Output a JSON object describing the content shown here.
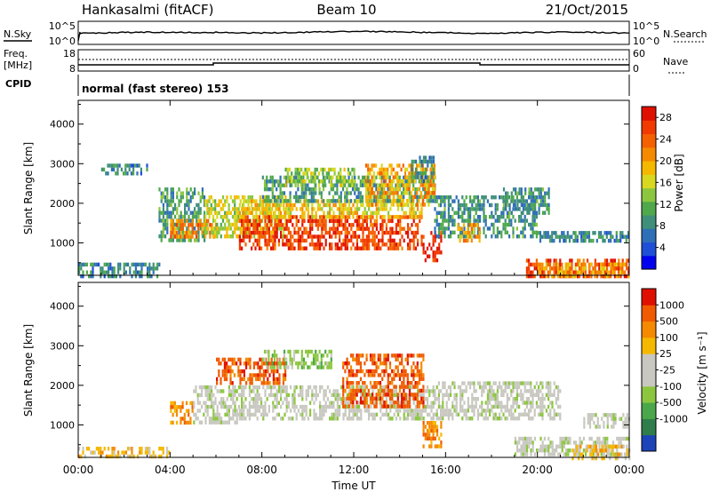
{
  "header": {
    "station": "Hankasalmi (fitACF)",
    "beam": "Beam 10",
    "date": "21/Oct/2015"
  },
  "top_panels": {
    "nsky_label": "N.Sky",
    "nsky_ticks": [
      "10^5",
      "10^0"
    ],
    "nsearch_label": "N.Search",
    "nsearch_ticks": [
      "10^5",
      "10^0"
    ],
    "freq_label": "Freq.",
    "freq_unit": "[MHz]",
    "freq_ticks": [
      "18",
      "8"
    ],
    "nave_label": "Nave",
    "nave_ticks": [
      "60",
      "0"
    ],
    "cpid_label": "CPID",
    "cpid_text": "normal (fast stereo) 153"
  },
  "chart_data": [
    {
      "type": "heatmap",
      "panel": "power",
      "ylabel": "Slant Range [km]",
      "xlabel": "",
      "x_ticks": [
        "00:00",
        "04:00",
        "08:00",
        "12:00",
        "16:00",
        "20:00",
        "00:00"
      ],
      "x_range_hours": [
        0,
        24
      ],
      "y_ticks": [
        1000,
        2000,
        3000,
        4000
      ],
      "ylim": [
        180,
        4600
      ],
      "colorbar": {
        "label": "Power [dB]",
        "tick_labels": [
          "4",
          "8",
          "12",
          "16",
          "20",
          "24",
          "28"
        ],
        "range": [
          0,
          30
        ],
        "colors": [
          "#0000ee",
          "#1e4fd6",
          "#2f6fb7",
          "#3f8f7a",
          "#4fa84a",
          "#8cc63f",
          "#d8d820",
          "#f5b800",
          "#f58a00",
          "#f56000",
          "#f03a00",
          "#e01000"
        ]
      },
      "regions": [
        {
          "t": [
            0.0,
            3.5
          ],
          "r": [
            200,
            500
          ],
          "value": 8
        },
        {
          "t": [
            1.0,
            3.0
          ],
          "r": [
            2800,
            3000
          ],
          "value": 8
        },
        {
          "t": [
            3.5,
            5.5
          ],
          "r": [
            1100,
            2400
          ],
          "value": 10
        },
        {
          "t": [
            4.0,
            6.0
          ],
          "r": [
            1200,
            1600
          ],
          "value": 22
        },
        {
          "t": [
            5.5,
            9.0
          ],
          "r": [
            1200,
            2200
          ],
          "value": 16
        },
        {
          "t": [
            7.0,
            15.0
          ],
          "r": [
            900,
            1700
          ],
          "value": 26
        },
        {
          "t": [
            7.0,
            15.0
          ],
          "r": [
            1700,
            2100
          ],
          "value": 18
        },
        {
          "t": [
            8.0,
            15.5
          ],
          "r": [
            2100,
            2700
          ],
          "value": 10
        },
        {
          "t": [
            9.0,
            12.0
          ],
          "r": [
            2500,
            2900
          ],
          "value": 14
        },
        {
          "t": [
            12.5,
            15.5
          ],
          "r": [
            2000,
            3000
          ],
          "value": 20
        },
        {
          "t": [
            14.5,
            15.5
          ],
          "r": [
            2600,
            3200
          ],
          "value": 8
        },
        {
          "t": [
            15.0,
            15.8
          ],
          "r": [
            600,
            1300
          ],
          "value": 28
        },
        {
          "t": [
            15.5,
            20.0
          ],
          "r": [
            1200,
            2200
          ],
          "value": 9
        },
        {
          "t": [
            16.5,
            17.5
          ],
          "r": [
            1100,
            1500
          ],
          "value": 20
        },
        {
          "t": [
            18.5,
            20.5
          ],
          "r": [
            1800,
            2400
          ],
          "value": 9
        },
        {
          "t": [
            20.0,
            24.0
          ],
          "r": [
            1100,
            1300
          ],
          "value": 8
        },
        {
          "t": [
            19.5,
            24.0
          ],
          "r": [
            200,
            600
          ],
          "value": 26
        },
        {
          "t": [
            20.0,
            24.0
          ],
          "r": [
            200,
            500
          ],
          "value": 20
        }
      ]
    },
    {
      "type": "heatmap",
      "panel": "velocity",
      "ylabel": "Slant Range [km]",
      "xlabel": "Time UT",
      "x_ticks": [
        "00:00",
        "04:00",
        "08:00",
        "12:00",
        "16:00",
        "20:00",
        "00:00"
      ],
      "x_range_hours": [
        0,
        24
      ],
      "y_ticks": [
        1000,
        2000,
        3000,
        4000
      ],
      "ylim": [
        180,
        4600
      ],
      "colorbar": {
        "label": "Velocity [m s⁻¹]",
        "tick_labels": [
          "1000",
          "500",
          "100",
          "25",
          "-25",
          "-100",
          "-500",
          "-1000"
        ],
        "bins": [
          {
            "color": "#1c44b8"
          },
          {
            "color": "#2f7d4a"
          },
          {
            "color": "#4aa84a"
          },
          {
            "color": "#8cc63f"
          },
          {
            "color": "#c8c8c0"
          },
          {
            "color": "#c8c8c0"
          },
          {
            "color": "#f5b800"
          },
          {
            "color": "#f58a00"
          },
          {
            "color": "#f05a00"
          },
          {
            "color": "#e01000"
          }
        ]
      },
      "regions": [
        {
          "t": [
            0.0,
            4.0
          ],
          "r": [
            200,
            450
          ],
          "bin": 6
        },
        {
          "t": [
            4.0,
            5.0
          ],
          "r": [
            1100,
            1600
          ],
          "bin": 7
        },
        {
          "t": [
            5.0,
            7.0
          ],
          "r": [
            1100,
            2000
          ],
          "bin": 4
        },
        {
          "t": [
            6.0,
            9.0
          ],
          "r": [
            2100,
            2700
          ],
          "bin": 8
        },
        {
          "t": [
            8.0,
            11.0
          ],
          "r": [
            2500,
            2900
          ],
          "bin": 3
        },
        {
          "t": [
            7.0,
            15.5
          ],
          "r": [
            1200,
            2000
          ],
          "bin": 4
        },
        {
          "t": [
            11.5,
            15.0
          ],
          "r": [
            1500,
            2800
          ],
          "bin": 8
        },
        {
          "t": [
            15.0,
            15.8
          ],
          "r": [
            500,
            1100
          ],
          "bin": 7
        },
        {
          "t": [
            15.5,
            21.0
          ],
          "r": [
            1200,
            2100
          ],
          "bin": 4
        },
        {
          "t": [
            19.0,
            24.0
          ],
          "r": [
            300,
            700
          ],
          "bin": 4
        },
        {
          "t": [
            21.5,
            24.0
          ],
          "r": [
            200,
            500
          ],
          "bin": 6
        },
        {
          "t": [
            22.0,
            24.0
          ],
          "r": [
            1000,
            1300
          ],
          "bin": 4
        }
      ]
    }
  ]
}
